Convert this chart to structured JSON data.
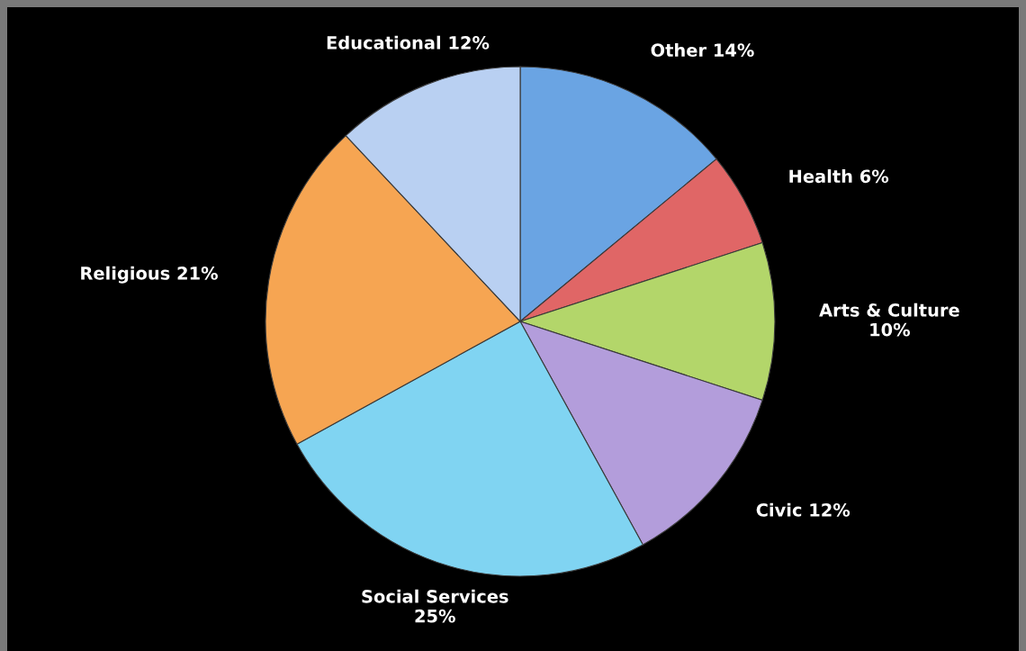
{
  "chart_data": {
    "type": "pie",
    "categories": [
      "Other",
      "Health",
      "Arts & Culture",
      "Civic",
      "Social Services",
      "Religious",
      "Educational"
    ],
    "values": [
      14,
      6,
      10,
      12,
      25,
      21,
      12
    ],
    "value_labels": [
      "14%",
      "6%",
      "10%",
      "12%",
      "25%",
      "21%",
      "12%"
    ],
    "colors": [
      "#6aa4e3",
      "#e06666",
      "#b3d66a",
      "#b39ddb",
      "#80d4f2",
      "#f6a552",
      "#b9d0f2"
    ],
    "legend": false
  }
}
